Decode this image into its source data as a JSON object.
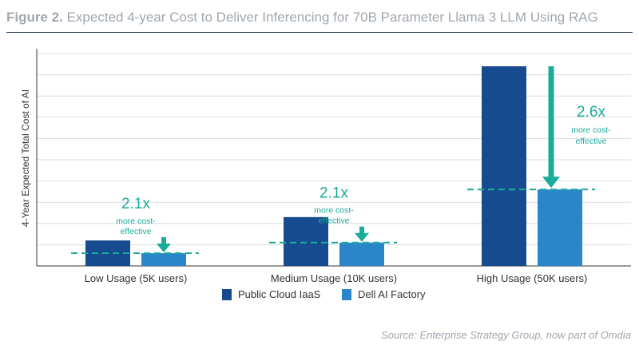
{
  "title": {
    "prefix": "Figure 2.",
    "text": "Expected 4-year Cost to Deliver Inferencing for 70B Parameter Llama 3 LLM Using RAG"
  },
  "source": "Source: Enterprise Strategy Group, now part of Omdia",
  "colors": {
    "public_cloud": "#164c8f",
    "dell": "#2b86c9",
    "accent": "#1aab9b",
    "grid": "#d9dde1",
    "axis": "#333333"
  },
  "chart_data": {
    "type": "bar",
    "categories": [
      "Low Usage (5K users)",
      "Medium Usage (10K users)",
      "High Usage (50K users)"
    ],
    "ylabel": "4-Year Expected Total Cost of AI",
    "xlabel": "",
    "ylim": [
      0,
      10
    ],
    "grid": true,
    "y_tick_labels_shown": false,
    "legend_position": "bottom-center",
    "series": [
      {
        "name": "Public Cloud IaaS",
        "values": [
          1.2,
          2.3,
          9.4
        ]
      },
      {
        "name": "Dell AI Factory",
        "values": [
          0.6,
          1.1,
          3.6
        ]
      }
    ],
    "annotations": [
      {
        "category": 0,
        "ratio": "2.1x",
        "caption": [
          "more cost-",
          "effective"
        ]
      },
      {
        "category": 1,
        "ratio": "2.1x",
        "caption": [
          "more cost-",
          "effective"
        ]
      },
      {
        "category": 2,
        "ratio": "2.6x",
        "caption": [
          "more cost-",
          "effective"
        ]
      }
    ]
  }
}
